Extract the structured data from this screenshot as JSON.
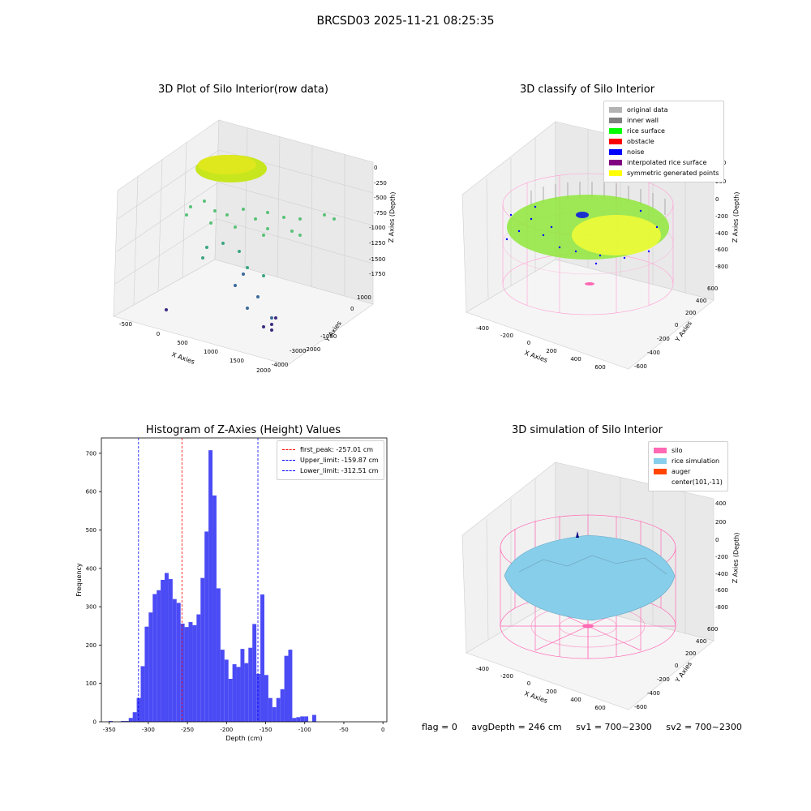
{
  "suptitle": "BRCSD03 2025-11-21 08:25:35",
  "panels": {
    "raw": {
      "title": "3D Plot of Silo Interior(row data)",
      "xlabel": "X Axies",
      "ylabel": "Y Axies",
      "zlabel": "Z Axies (Depth)",
      "xticks": [
        "-500",
        "0",
        "500",
        "1000",
        "1500",
        "2000"
      ],
      "yticks": [
        "1000",
        "0",
        "-1000",
        "-2000",
        "-3000",
        "-4000"
      ],
      "zticks": [
        "0",
        "-250",
        "-500",
        "-750",
        "-1000",
        "-1250",
        "-1500",
        "-1750"
      ]
    },
    "classify": {
      "title": "3D classify of Silo Interior",
      "xlabel": "X Axies",
      "ylabel": "Y Axies",
      "zlabel": "Z Axies (Depth)",
      "xticks": [
        "-400",
        "-200",
        "0",
        "200",
        "400",
        "600"
      ],
      "yticks": [
        "600",
        "400",
        "200",
        "0",
        "-200",
        "-400",
        "-600"
      ],
      "zticks": [
        "400",
        "200",
        "0",
        "-200",
        "-400",
        "-600",
        "-800"
      ],
      "legend": [
        {
          "label": "original data",
          "color": "#b3b3b3"
        },
        {
          "label": "inner wall",
          "color": "#808080"
        },
        {
          "label": "rice surface",
          "color": "#00ff00"
        },
        {
          "label": "obstacle",
          "color": "#ff0000"
        },
        {
          "label": "noise",
          "color": "#0000ff"
        },
        {
          "label": "interpolated rice surface",
          "color": "#800080"
        },
        {
          "label": "symmetric generated points",
          "color": "#ffff00"
        }
      ]
    },
    "simulation": {
      "title": "3D simulation of Silo Interior",
      "xlabel": "X Axies",
      "ylabel": "Y Axies",
      "zlabel": "Z Axies (Depth)",
      "xticks": [
        "-400",
        "-200",
        "0",
        "200",
        "400",
        "600"
      ],
      "yticks": [
        "600",
        "400",
        "200",
        "0",
        "-200",
        "-400",
        "-600"
      ],
      "zticks": [
        "400",
        "200",
        "0",
        "-200",
        "-400",
        "-600",
        "-800"
      ],
      "legend": [
        {
          "label": "silo",
          "color": "#ff69b4"
        },
        {
          "label": "rice simulation",
          "color": "#87ceeb"
        },
        {
          "label": "auger",
          "color": "#ff4500"
        },
        {
          "label": "center(101,-11)",
          "color": ""
        }
      ]
    }
  },
  "chart_data": [
    {
      "type": "bar",
      "title": "Histogram of Z-Axies (Height) Values",
      "xlabel": "Depth (cm)",
      "ylabel": "Frequency",
      "xlim": [
        -360,
        5
      ],
      "ylim": [
        0,
        740
      ],
      "xticks": [
        -350,
        -300,
        -250,
        -200,
        -150,
        -100,
        -50,
        0
      ],
      "yticks": [
        0,
        100,
        200,
        300,
        400,
        500,
        600,
        700
      ],
      "bar_color": "#4b4bf5",
      "bin_start": -350.5,
      "bin_width": 5.1,
      "values": [
        2,
        0,
        0,
        2,
        2,
        10,
        25,
        62,
        145,
        248,
        285,
        333,
        343,
        370,
        388,
        372,
        320,
        310,
        256,
        247,
        260,
        252,
        280,
        375,
        496,
        708,
        590,
        348,
        188,
        162,
        112,
        150,
        143,
        190,
        153,
        193,
        255,
        125,
        332,
        122,
        62,
        38,
        62,
        85,
        172,
        188,
        10,
        12,
        14,
        14,
        0,
        18
      ],
      "grid": false,
      "legend_position": "top-right",
      "lines": [
        {
          "label": "first_peak: -257.01 cm",
          "x": -257.01,
          "color": "#ff0000"
        },
        {
          "label": "Upper_limit: -159.87 cm",
          "x": -159.87,
          "color": "#0000ff"
        },
        {
          "label": "Lower_limit: -312.51 cm",
          "x": -312.51,
          "color": "#0000ff"
        }
      ]
    }
  ],
  "footer": {
    "flag": "flag = 0",
    "avg": "avgDepth = 246 cm",
    "sv1": "sv1 = 700~2300",
    "sv2": "sv2 = 700~2300"
  }
}
